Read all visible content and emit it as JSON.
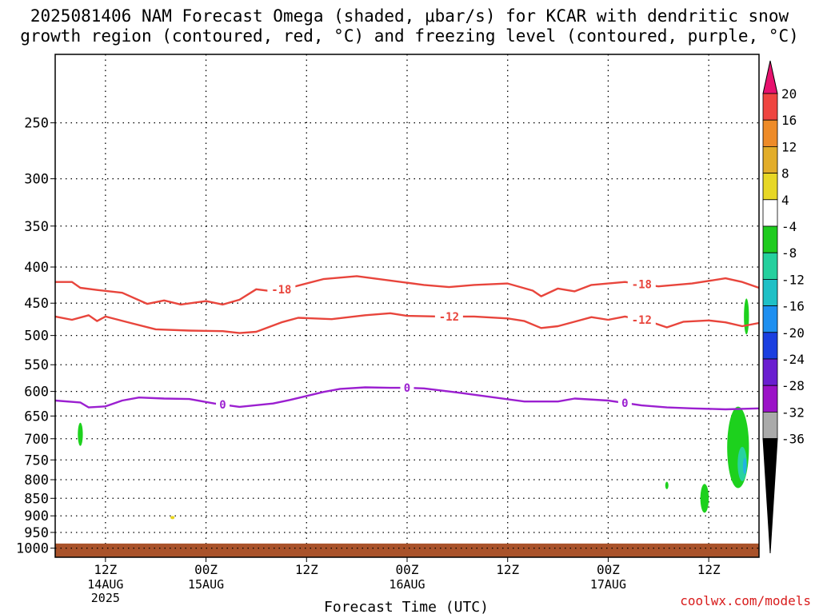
{
  "title_line1": "2025081406 NAM Forecast Omega (shaded, μbar/s) for KCAR with dendritic snow",
  "title_line2": "growth region (contoured, red, °C) and freezing level (contoured, purple, °C)",
  "credit": "coolwx.com/models",
  "chart_data": {
    "type": "contour",
    "xlabel": "Forecast Time (UTC)",
    "x_ticks": [
      {
        "hour": 6,
        "label": "12Z",
        "sub": [
          "14AUG",
          "2025"
        ]
      },
      {
        "hour": 18,
        "label": "00Z",
        "sub": [
          "15AUG"
        ]
      },
      {
        "hour": 30,
        "label": "12Z",
        "sub": []
      },
      {
        "hour": 42,
        "label": "00Z",
        "sub": [
          "16AUG"
        ]
      },
      {
        "hour": 54,
        "label": "12Z",
        "sub": []
      },
      {
        "hour": 66,
        "label": "00Z",
        "sub": [
          "17AUG"
        ]
      },
      {
        "hour": 78,
        "label": "12Z",
        "sub": []
      }
    ],
    "xlim": [
      0,
      84
    ],
    "y_ticks": [
      250,
      300,
      350,
      400,
      450,
      500,
      550,
      600,
      650,
      700,
      750,
      800,
      850,
      900,
      950,
      1000
    ],
    "ylim": [
      1030,
      200
    ],
    "y_scale": "log",
    "grid": true,
    "contours": [
      {
        "name": "-18",
        "color": "#e8453c",
        "label": "-18",
        "label_at": [
          27,
          70,
          95
        ],
        "points": [
          [
            0,
            420
          ],
          [
            2,
            420
          ],
          [
            3,
            428
          ],
          [
            5,
            431
          ],
          [
            8,
            435
          ],
          [
            11,
            451
          ],
          [
            13,
            446
          ],
          [
            15,
            452
          ],
          [
            18,
            447
          ],
          [
            20,
            452
          ],
          [
            22,
            445
          ],
          [
            24,
            430
          ],
          [
            26,
            433
          ],
          [
            28,
            428
          ],
          [
            32,
            416
          ],
          [
            36,
            412
          ],
          [
            40,
            418
          ],
          [
            44,
            424
          ],
          [
            47,
            427
          ],
          [
            50,
            424
          ],
          [
            54,
            422
          ],
          [
            57,
            432
          ],
          [
            58,
            440
          ],
          [
            60,
            429
          ],
          [
            62,
            433
          ],
          [
            64,
            424
          ],
          [
            68,
            420
          ],
          [
            72,
            426
          ],
          [
            76,
            422
          ],
          [
            80,
            415
          ],
          [
            82,
            420
          ],
          [
            84,
            428
          ]
        ]
      },
      {
        "name": "-12",
        "color": "#e8453c",
        "label": "-12",
        "label_at": [
          47,
          70
        ],
        "points": [
          [
            0,
            470
          ],
          [
            2,
            475
          ],
          [
            4,
            468
          ],
          [
            5,
            477
          ],
          [
            6,
            470
          ],
          [
            9,
            480
          ],
          [
            12,
            490
          ],
          [
            16,
            492
          ],
          [
            20,
            493
          ],
          [
            22,
            496
          ],
          [
            24,
            494
          ],
          [
            27,
            479
          ],
          [
            29,
            472
          ],
          [
            33,
            474
          ],
          [
            37,
            468
          ],
          [
            40,
            465
          ],
          [
            42,
            469
          ],
          [
            46,
            470
          ],
          [
            50,
            470
          ],
          [
            54,
            473
          ],
          [
            56,
            477
          ],
          [
            58,
            488
          ],
          [
            60,
            485
          ],
          [
            62,
            478
          ],
          [
            64,
            471
          ],
          [
            66,
            475
          ],
          [
            68,
            470
          ],
          [
            71,
            478
          ],
          [
            73,
            487
          ],
          [
            75,
            478
          ],
          [
            78,
            476
          ],
          [
            80,
            479
          ],
          [
            82,
            485
          ],
          [
            84,
            480
          ]
        ]
      },
      {
        "name": "0",
        "color": "#9b1fd0",
        "label": "0",
        "label_at": [
          20,
          42,
          68
        ],
        "points": [
          [
            0,
            618
          ],
          [
            3,
            622
          ],
          [
            4,
            632
          ],
          [
            6,
            630
          ],
          [
            8,
            618
          ],
          [
            10,
            612
          ],
          [
            13,
            614
          ],
          [
            16,
            615
          ],
          [
            19,
            624
          ],
          [
            22,
            631
          ],
          [
            26,
            624
          ],
          [
            28,
            617
          ],
          [
            32,
            601
          ],
          [
            34,
            595
          ],
          [
            37,
            592
          ],
          [
            40,
            593
          ],
          [
            42,
            593
          ],
          [
            44,
            594
          ],
          [
            48,
            602
          ],
          [
            52,
            611
          ],
          [
            56,
            620
          ],
          [
            60,
            620
          ],
          [
            62,
            614
          ],
          [
            66,
            618
          ],
          [
            70,
            628
          ],
          [
            73,
            632
          ],
          [
            76,
            634
          ],
          [
            80,
            636
          ],
          [
            84,
            634
          ]
        ]
      }
    ],
    "shaded": [
      {
        "value": -6,
        "color": "#1dd11d",
        "hour": 3,
        "p": 690,
        "dh": 0.6,
        "dp": 52
      },
      {
        "value": 6,
        "color": "#e8d41c",
        "hour": 14,
        "p": 905,
        "dh": 0.5,
        "dp": 9
      },
      {
        "value": -6,
        "color": "#1dd11d",
        "hour": 73,
        "p": 815,
        "dh": 0.25,
        "dp": 20
      },
      {
        "value": -6,
        "color": "#1dd11d",
        "hour": 77.5,
        "p": 850,
        "dh": 1.0,
        "dp": 80
      },
      {
        "value": -6,
        "color": "#1dd11d",
        "hour": 82.5,
        "p": 470,
        "dh": 0.6,
        "dp": 55
      },
      {
        "value": -6,
        "color": "#1dd11d",
        "hour": 81.5,
        "p": 720,
        "dh": 2.6,
        "dp": 190
      },
      {
        "value": -10,
        "color": "#27d2a0",
        "hour": 82,
        "p": 760,
        "dh": 1.1,
        "dp": 85
      },
      {
        "value": -14,
        "color": "#21b3e2",
        "hour": 82.3,
        "p": 765,
        "dh": 0.45,
        "dp": 40
      }
    ],
    "ground": {
      "color": "#a9522a",
      "p_top": 985,
      "p_bottom": 1030
    },
    "colorbar": {
      "labels": [
        "20",
        "16",
        "12",
        "8",
        "4",
        "-4",
        "-8",
        "-12",
        "-16",
        "-20",
        "-24",
        "-28",
        "-32",
        "-36"
      ],
      "colors": [
        "#e7126e",
        "#ef4540",
        "#ee8b28",
        "#e2ad2a",
        "#e7d726",
        "#ffffff",
        "#1fcb1f",
        "#25d09e",
        "#1fc0c6",
        "#1e8ff0",
        "#1b3fe0",
        "#6a1ed0",
        "#9b12c7",
        "#aaaaaa",
        "#000000"
      ]
    }
  }
}
